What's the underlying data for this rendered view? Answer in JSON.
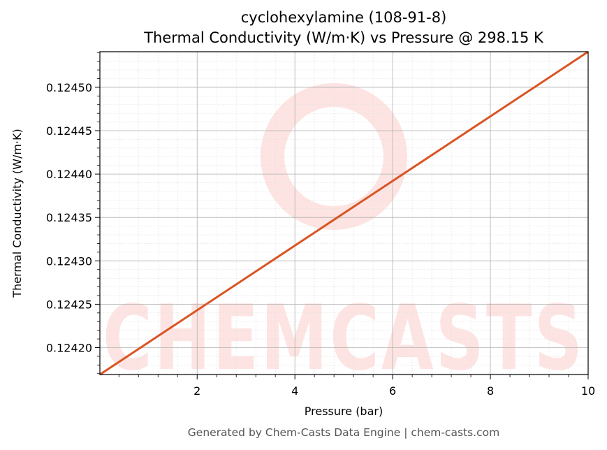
{
  "chart_data": {
    "type": "line",
    "title": "cyclohexylamine (108-91-8)",
    "subtitle": "Thermal Conductivity (W/m·K) vs Pressure @ 298.15 K",
    "xlabel": "Pressure (bar)",
    "ylabel": "Thermal Conductivity (W/m·K)",
    "xlim": [
      0.01,
      10
    ],
    "ylim": [
      0.124169,
      0.124541
    ],
    "xticks": [
      2,
      4,
      6,
      8,
      10
    ],
    "xtick_labels": [
      "2",
      "4",
      "6",
      "8",
      "10"
    ],
    "yticks": [
      0.1242,
      0.12425,
      0.1243,
      0.12435,
      0.1244,
      0.12445,
      0.1245
    ],
    "ytick_labels": [
      "0.12420",
      "0.12425",
      "0.12430",
      "0.12435",
      "0.12440",
      "0.12445",
      "0.12450"
    ],
    "grid": true,
    "series": [
      {
        "x": [
          0.01,
          10
        ],
        "values": [
          0.124169,
          0.124541
        ],
        "color": "#d95523"
      }
    ]
  },
  "watermark": {
    "text": "CHEMCASTS",
    "color": "#fde4e2"
  },
  "footer": {
    "text": "Generated by Chem-Casts Data Engine | chem-casts.com"
  }
}
